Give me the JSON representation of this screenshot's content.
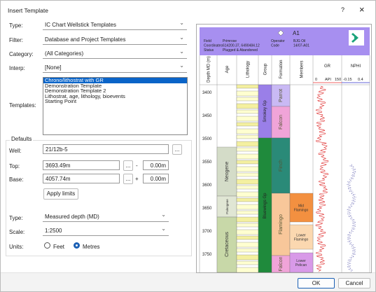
{
  "title_bar": {
    "title": "Insert Template",
    "help": "?",
    "close": "×"
  },
  "form": {
    "type": {
      "label": "Type:",
      "value": "IC Chart Wellstick Templates"
    },
    "filter": {
      "label": "Filter:",
      "value": "Database and Project Templates"
    },
    "category": {
      "label": "Category:",
      "value": "(All Categories)"
    },
    "interp": {
      "label": "Interp:",
      "value": "[None]"
    },
    "templates": {
      "label": "Templates:",
      "items": [
        "Chrono/lithostrat with GR",
        "Demonstration Template",
        "Demonstration Template 2",
        "Lithostrat, age, lithology, bioevents",
        "Starting Point"
      ]
    },
    "defaults": {
      "legend": "Defaults",
      "well": {
        "label": "Well:",
        "value": "21/12b-5",
        "browse": "..."
      },
      "top": {
        "label": "Top:",
        "value": "3693.49m",
        "browse": "...",
        "sign": "-",
        "offset": "0.00m"
      },
      "base": {
        "label": "Base:",
        "value": "4057.74m",
        "browse": "...",
        "sign": "+",
        "offset": "0.00m"
      },
      "apply": "Apply limits"
    },
    "depth_type": {
      "label": "Type:",
      "value": "Measured depth (MD)"
    },
    "scale": {
      "label": "Scale:",
      "value": "1:2500"
    },
    "units": {
      "label": "Units:",
      "options": [
        "Feet",
        "Metres"
      ]
    }
  },
  "preview": {
    "well": "A1",
    "header": [
      [
        "Field",
        "Primrose"
      ],
      [
        "Coordinates",
        "614200.37, 6490484.12"
      ],
      [
        "Status",
        "Plugged & Abandoned"
      ]
    ],
    "header_right": [
      [
        "Operator",
        "BJG Oil"
      ],
      [
        "Code",
        "14/07-A01"
      ]
    ],
    "columns": [
      "Depth MD (m)",
      "Age",
      "Lithology",
      "Group",
      "Formation",
      "Members",
      "GR",
      "NPHI"
    ],
    "gr_scale": [
      "0",
      "API",
      "150"
    ],
    "nphi_scale": [
      "-0.15",
      "0.4"
    ],
    "depths": [
      "3400",
      "3450",
      "3500",
      "3550",
      "3600",
      "3650",
      "3700",
      "3750"
    ],
    "ages": [
      "Neogene",
      "Paleogene",
      "Cretaceous"
    ],
    "groups": [
      "Smokey Gp",
      "Bluewings Gp"
    ],
    "formations": [
      "Parrot",
      "Falcon",
      "Finch",
      "Flamingo",
      "Falcon"
    ],
    "members": [
      "Mid Flamingo",
      "Lower Flamingo",
      "Lower Pelican"
    ]
  },
  "buttons": {
    "ok": "OK",
    "cancel": "Cancel"
  }
}
